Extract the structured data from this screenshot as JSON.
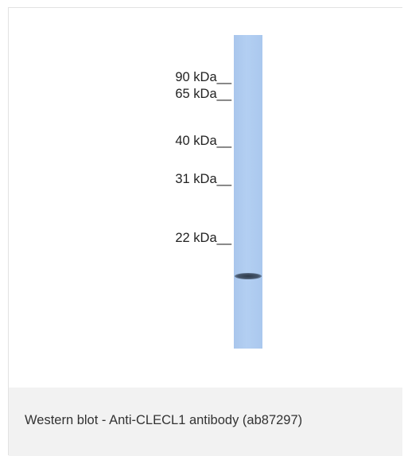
{
  "markers": [
    "90 kDa__",
    "65 kDa__",
    "40 kDa__",
    "31 kDa__",
    "22 kDa__"
  ],
  "caption": "Western blot - Anti-CLECL1 antibody (ab87297)"
}
